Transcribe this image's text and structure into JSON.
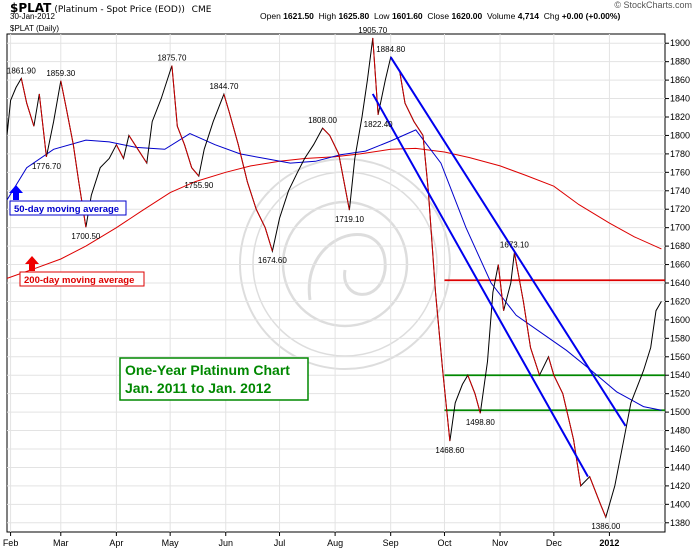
{
  "header": {
    "symbol": "$PLAT",
    "name": "(Platinum  - Spot Price (EOD))",
    "exchange": "CME",
    "date": "30-Jan-2012",
    "open_label": "Open",
    "open": "1621.50",
    "high_label": "High",
    "high": "1625.80",
    "low_label": "Low",
    "low": "1601.60",
    "close_label": "Close",
    "close": "1620.00",
    "volume_label": "Volume",
    "volume": "4,714",
    "chg_label": "Chg",
    "chg": "+0.00 (+0.00%)",
    "brand": "© StockCharts.com",
    "period": "$PLAT (Daily)"
  },
  "chart_data": {
    "type": "line",
    "ylim": [
      1370,
      1910
    ],
    "y_ticks": [
      1380,
      1400,
      1420,
      1440,
      1460,
      1480,
      1500,
      1520,
      1540,
      1560,
      1580,
      1600,
      1620,
      1640,
      1660,
      1680,
      1700,
      1720,
      1740,
      1760,
      1780,
      1800,
      1820,
      1840,
      1860,
      1880,
      1900
    ],
    "x_labels": [
      "Feb",
      "Mar",
      "Apr",
      "May",
      "Jun",
      "Jul",
      "Aug",
      "Sep",
      "Oct",
      "Nov",
      "Dec",
      "2012"
    ],
    "series": [
      {
        "name": "$PLAT (Daily)",
        "color": "#000000",
        "points": [
          [
            "2011-01-30",
            1800
          ],
          [
            "2011-02-01",
            1838
          ],
          [
            "2011-02-04",
            1852
          ],
          [
            "2011-02-07",
            1861.9
          ],
          [
            "2011-02-10",
            1835
          ],
          [
            "2011-02-14",
            1810
          ],
          [
            "2011-02-17",
            1845
          ],
          [
            "2011-02-21",
            1776.7
          ],
          [
            "2011-02-25",
            1815
          ],
          [
            "2011-03-01",
            1859.3
          ],
          [
            "2011-03-04",
            1830
          ],
          [
            "2011-03-08",
            1790
          ],
          [
            "2011-03-11",
            1750
          ],
          [
            "2011-03-15",
            1700.5
          ],
          [
            "2011-03-18",
            1735
          ],
          [
            "2011-03-23",
            1765
          ],
          [
            "2011-03-28",
            1775
          ],
          [
            "2011-04-01",
            1790
          ],
          [
            "2011-04-05",
            1775
          ],
          [
            "2011-04-08",
            1800
          ],
          [
            "2011-04-13",
            1785
          ],
          [
            "2011-04-18",
            1770
          ],
          [
            "2011-04-21",
            1815
          ],
          [
            "2011-04-26",
            1840
          ],
          [
            "2011-05-02",
            1875.7
          ],
          [
            "2011-05-05",
            1810
          ],
          [
            "2011-05-09",
            1790
          ],
          [
            "2011-05-13",
            1765
          ],
          [
            "2011-05-17",
            1755.9
          ],
          [
            "2011-05-20",
            1785
          ],
          [
            "2011-05-25",
            1815
          ],
          [
            "2011-05-31",
            1844.7
          ],
          [
            "2011-06-03",
            1825
          ],
          [
            "2011-06-08",
            1790
          ],
          [
            "2011-06-13",
            1750
          ],
          [
            "2011-06-18",
            1720
          ],
          [
            "2011-06-23",
            1700
          ],
          [
            "2011-06-27",
            1674.6
          ],
          [
            "2011-07-01",
            1710
          ],
          [
            "2011-07-06",
            1740
          ],
          [
            "2011-07-11",
            1760
          ],
          [
            "2011-07-15",
            1775
          ],
          [
            "2011-07-20",
            1790
          ],
          [
            "2011-07-25",
            1808
          ],
          [
            "2011-07-29",
            1800
          ],
          [
            "2011-08-03",
            1780
          ],
          [
            "2011-08-09",
            1719.1
          ],
          [
            "2011-08-12",
            1775
          ],
          [
            "2011-08-16",
            1820
          ],
          [
            "2011-08-19",
            1860
          ],
          [
            "2011-08-22",
            1905.7
          ],
          [
            "2011-08-25",
            1822.4
          ],
          [
            "2011-08-29",
            1860
          ],
          [
            "2011-09-01",
            1884.8
          ],
          [
            "2011-09-06",
            1870
          ],
          [
            "2011-09-09",
            1835
          ],
          [
            "2011-09-14",
            1815
          ],
          [
            "2011-09-19",
            1800
          ],
          [
            "2011-09-22",
            1740
          ],
          [
            "2011-09-26",
            1630
          ],
          [
            "2011-09-30",
            1545
          ],
          [
            "2011-10-04",
            1468.6
          ],
          [
            "2011-10-07",
            1510
          ],
          [
            "2011-10-11",
            1530
          ],
          [
            "2011-10-14",
            1540
          ],
          [
            "2011-10-18",
            1520
          ],
          [
            "2011-10-21",
            1498.8
          ],
          [
            "2011-10-25",
            1555
          ],
          [
            "2011-10-28",
            1630
          ],
          [
            "2011-10-31",
            1660
          ],
          [
            "2011-11-03",
            1610
          ],
          [
            "2011-11-07",
            1640
          ],
          [
            "2011-11-09",
            1673.1
          ],
          [
            "2011-11-14",
            1620
          ],
          [
            "2011-11-18",
            1570
          ],
          [
            "2011-11-23",
            1540
          ],
          [
            "2011-11-28",
            1560
          ],
          [
            "2011-12-01",
            1540
          ],
          [
            "2011-12-06",
            1520
          ],
          [
            "2011-12-12",
            1470
          ],
          [
            "2011-12-16",
            1420
          ],
          [
            "2011-12-21",
            1430
          ],
          [
            "2011-12-27",
            1400
          ],
          [
            "2011-12-30",
            1386
          ],
          [
            "2012-01-04",
            1420
          ],
          [
            "2012-01-09",
            1470
          ],
          [
            "2012-01-13",
            1510
          ],
          [
            "2012-01-17",
            1530
          ],
          [
            "2012-01-20",
            1545
          ],
          [
            "2012-01-24",
            1570
          ],
          [
            "2012-01-27",
            1610
          ],
          [
            "2012-01-30",
            1620
          ]
        ]
      },
      {
        "name": "50-day moving average",
        "color": "#0000cc",
        "points": [
          [
            "2011-01-30",
            1730
          ],
          [
            "2011-02-10",
            1765
          ],
          [
            "2011-02-25",
            1785
          ],
          [
            "2011-03-15",
            1795
          ],
          [
            "2011-03-28",
            1793
          ],
          [
            "2011-04-12",
            1787
          ],
          [
            "2011-04-28",
            1785
          ],
          [
            "2011-05-12",
            1802
          ],
          [
            "2011-05-26",
            1790
          ],
          [
            "2011-06-09",
            1780
          ],
          [
            "2011-06-23",
            1775
          ],
          [
            "2011-07-07",
            1770
          ],
          [
            "2011-07-21",
            1772
          ],
          [
            "2011-08-04",
            1779
          ],
          [
            "2011-08-18",
            1783
          ],
          [
            "2011-09-01",
            1794
          ],
          [
            "2011-09-15",
            1806
          ],
          [
            "2011-09-29",
            1770
          ],
          [
            "2011-10-13",
            1700
          ],
          [
            "2011-10-27",
            1640
          ],
          [
            "2011-11-10",
            1605
          ],
          [
            "2011-11-24",
            1586
          ],
          [
            "2011-12-08",
            1567
          ],
          [
            "2011-12-22",
            1545
          ],
          [
            "2012-01-05",
            1522
          ],
          [
            "2012-01-20",
            1506
          ],
          [
            "2012-01-30",
            1502
          ]
        ]
      },
      {
        "name": "200-day moving average",
        "color": "#dd0000",
        "points": [
          [
            "2011-01-30",
            1645
          ],
          [
            "2011-02-15",
            1656
          ],
          [
            "2011-03-01",
            1666
          ],
          [
            "2011-03-15",
            1680
          ],
          [
            "2011-04-01",
            1700
          ],
          [
            "2011-04-15",
            1718
          ],
          [
            "2011-05-01",
            1738
          ],
          [
            "2011-05-15",
            1750
          ],
          [
            "2011-06-01",
            1760
          ],
          [
            "2011-06-15",
            1767
          ],
          [
            "2011-07-01",
            1772
          ],
          [
            "2011-07-15",
            1775
          ],
          [
            "2011-08-01",
            1777
          ],
          [
            "2011-08-15",
            1780
          ],
          [
            "2011-09-01",
            1785
          ],
          [
            "2011-09-15",
            1786
          ],
          [
            "2011-10-01",
            1782
          ],
          [
            "2011-10-15",
            1776
          ],
          [
            "2011-11-01",
            1767
          ],
          [
            "2011-11-15",
            1757
          ],
          [
            "2011-12-01",
            1745
          ],
          [
            "2011-12-15",
            1725
          ],
          [
            "2012-01-01",
            1705
          ],
          [
            "2012-01-15",
            1690
          ],
          [
            "2012-01-30",
            1677
          ]
        ]
      }
    ],
    "trendlines": [
      {
        "color": "#0000ee",
        "from": [
          "2011-08-22",
          1845
        ],
        "to": [
          "2011-12-20",
          1430
        ]
      },
      {
        "color": "#0000ee",
        "from": [
          "2011-09-01",
          1885
        ],
        "to": [
          "2012-01-10",
          1485
        ]
      }
    ],
    "hlines": [
      {
        "color": "#dd0000",
        "y": 1643,
        "from": "2011-10-01",
        "to": "2012-01-30"
      },
      {
        "color": "#008800",
        "y": 1540,
        "from": "2011-10-01",
        "to": "2012-01-30"
      },
      {
        "color": "#008800",
        "y": 1502,
        "from": "2011-10-01",
        "to": "2012-01-30"
      }
    ],
    "annotations": [
      {
        "text": "1861.90",
        "at": [
          "2011-02-07",
          1861.9
        ]
      },
      {
        "text": "1859.30",
        "at": [
          "2011-03-01",
          1859.3
        ]
      },
      {
        "text": "1776.70",
        "at": [
          "2011-02-21",
          1776.7
        ]
      },
      {
        "text": "1700.50",
        "at": [
          "2011-03-15",
          1700.5
        ]
      },
      {
        "text": "1875.70",
        "at": [
          "2011-05-02",
          1875.7
        ]
      },
      {
        "text": "1755.90",
        "at": [
          "2011-05-17",
          1755.9
        ]
      },
      {
        "text": "1844.70",
        "at": [
          "2011-05-31",
          1844.7
        ]
      },
      {
        "text": "1674.60",
        "at": [
          "2011-06-27",
          1674.6
        ]
      },
      {
        "text": "1808.00",
        "at": [
          "2011-07-25",
          1808
        ]
      },
      {
        "text": "1719.10",
        "at": [
          "2011-08-09",
          1719.1
        ]
      },
      {
        "text": "1905.70",
        "at": [
          "2011-08-22",
          1905.7
        ]
      },
      {
        "text": "1822.40",
        "at": [
          "2011-08-25",
          1822.4
        ]
      },
      {
        "text": "1884.80",
        "at": [
          "2011-09-01",
          1884.8
        ]
      },
      {
        "text": "1468.60",
        "at": [
          "2011-10-04",
          1468.6
        ]
      },
      {
        "text": "1498.80",
        "at": [
          "2011-10-21",
          1498.8
        ]
      },
      {
        "text": "1673.10",
        "at": [
          "2011-11-09",
          1673.1
        ]
      },
      {
        "text": "1386.00",
        "at": [
          "2011-12-30",
          1386
        ]
      }
    ],
    "legend": {
      "ma50": "50-day moving average",
      "ma200": "200-day moving average",
      "title_line1": "One-Year Platinum Chart",
      "title_line2": "Jan. 2011 to Jan. 2012"
    },
    "grid": true
  }
}
